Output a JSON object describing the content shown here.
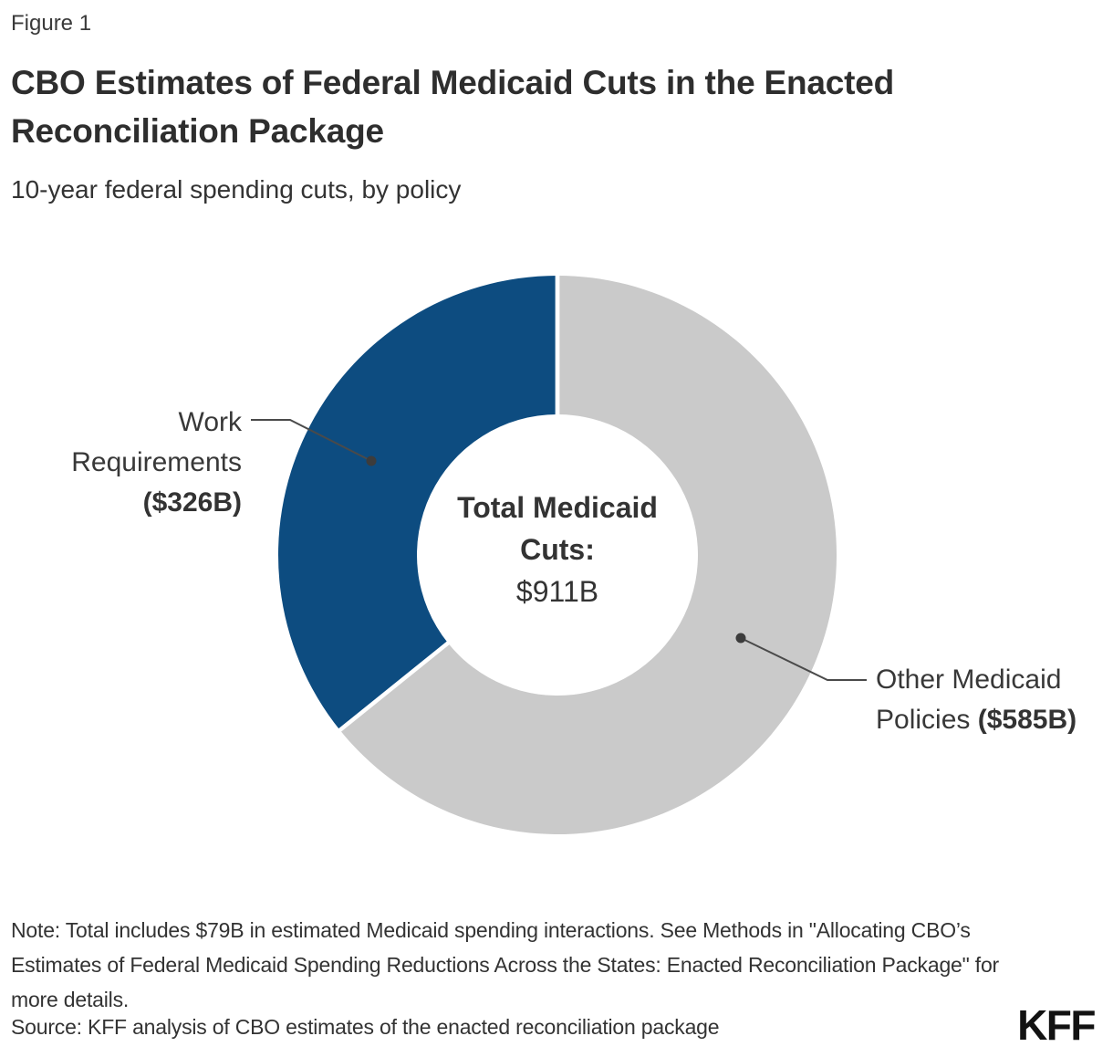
{
  "figure_label": "Figure 1",
  "title": "CBO Estimates of Federal Medicaid Cuts in the Enacted Reconciliation Package",
  "subtitle": "10-year federal spending cuts, by policy",
  "chart_data": {
    "type": "pie",
    "variant": "donut",
    "title": "CBO Estimates of Federal Medicaid Cuts in the Enacted Reconciliation Package",
    "subtitle": "10-year federal spending cuts, by policy",
    "units": "billions of US dollars",
    "total_value": 911,
    "total_label": "Total Medicaid Cuts:",
    "total_value_label": "$911B",
    "start_angle": "top",
    "direction": "counterclockwise",
    "legend_position": "callout-labels",
    "segments": [
      {
        "name": "Work Requirements",
        "value": 326,
        "value_label": "($326B)",
        "color": "#0d4c80"
      },
      {
        "name": "Other Medicaid Policies",
        "value": 585,
        "value_label": "($585B)",
        "color": "#cacaca"
      }
    ]
  },
  "note": "Note: Total includes $79B in estimated Medicaid spending interactions. See Methods in \"Allocating CBO’s Estimates of Federal Medicaid Spending Reductions Across the States: Enacted Reconciliation Package\" for more details.",
  "source": "Source: KFF analysis of CBO estimates of the enacted reconciliation package",
  "logo_text": "KFF",
  "colors": {
    "work_segment": "#0d4c80",
    "other_segment": "#cacaca",
    "divider": "#ffffff",
    "leader_line": "#4a4a4a",
    "leader_dot": "#3c3c3c",
    "text": "#333333"
  }
}
